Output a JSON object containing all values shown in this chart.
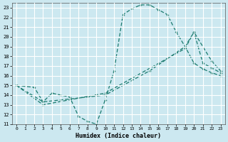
{
  "xlabel": "Humidex (Indice chaleur)",
  "bg_color": "#cce8f0",
  "grid_color": "#ffffff",
  "line_color": "#1a7a6e",
  "xlim": [
    -0.5,
    23.5
  ],
  "ylim": [
    11,
    23.5
  ],
  "xticks": [
    0,
    1,
    2,
    3,
    4,
    5,
    6,
    7,
    8,
    9,
    10,
    11,
    12,
    13,
    14,
    15,
    16,
    17,
    18,
    19,
    20,
    21,
    22,
    23
  ],
  "yticks": [
    11,
    12,
    13,
    14,
    15,
    16,
    17,
    18,
    19,
    20,
    21,
    22,
    23
  ],
  "curves": [
    {
      "x": [
        0,
        2,
        3,
        4,
        5,
        6,
        7,
        8,
        9,
        10,
        11,
        12,
        13,
        14,
        15,
        16,
        17,
        18,
        19,
        20,
        21,
        22,
        23
      ],
      "y": [
        15.0,
        14.8,
        13.3,
        14.2,
        14.0,
        13.8,
        11.8,
        11.3,
        11.0,
        13.5,
        16.5,
        22.3,
        22.9,
        23.3,
        23.3,
        22.8,
        22.3,
        20.5,
        19.0,
        17.3,
        16.7,
        16.3,
        16.0
      ]
    },
    {
      "x": [
        0,
        3,
        10,
        15,
        19,
        20,
        21,
        22,
        23
      ],
      "y": [
        15.0,
        13.3,
        14.0,
        16.5,
        19.0,
        20.5,
        17.3,
        16.8,
        16.3
      ]
    },
    {
      "x": [
        0,
        3,
        10,
        19,
        20,
        22,
        23
      ],
      "y": [
        15.0,
        13.0,
        14.2,
        18.8,
        20.5,
        17.5,
        16.5
      ]
    }
  ]
}
